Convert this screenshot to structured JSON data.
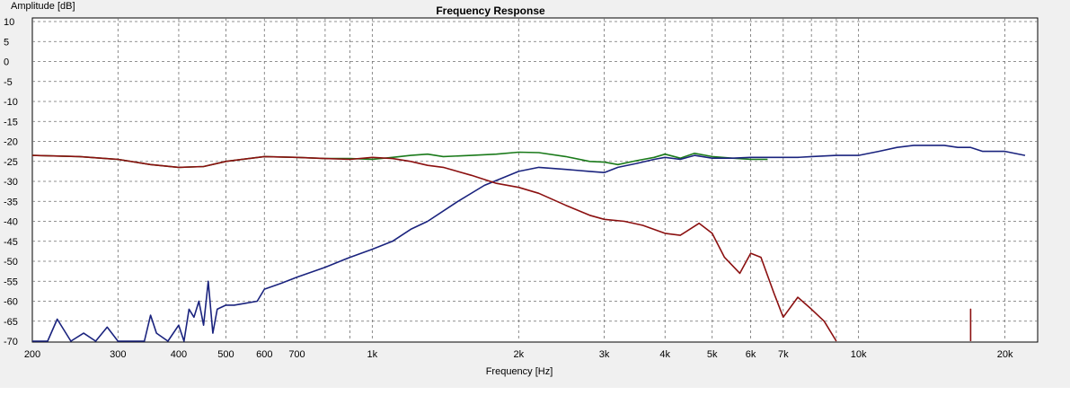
{
  "chart_data": {
    "type": "line",
    "title": "Frequency Response",
    "xlabel": "Frequency [Hz]",
    "ylabel": "Amplitude [dB]",
    "x_scale": "log",
    "xlim": [
      200,
      22000
    ],
    "ylim": [
      -70,
      10
    ],
    "grid": true,
    "y_ticks": [
      10,
      5,
      0,
      -5,
      -10,
      -15,
      -20,
      -25,
      -30,
      -35,
      -40,
      -45,
      -50,
      -55,
      -60,
      -65,
      -70
    ],
    "x_ticks": [
      {
        "value": 200,
        "label": "200"
      },
      {
        "value": 300,
        "label": "300"
      },
      {
        "value": 400,
        "label": "400"
      },
      {
        "value": 500,
        "label": "500"
      },
      {
        "value": 600,
        "label": "600"
      },
      {
        "value": 700,
        "label": "700"
      },
      {
        "value": 1000,
        "label": "1k"
      },
      {
        "value": 2000,
        "label": "2k"
      },
      {
        "value": 3000,
        "label": "3k"
      },
      {
        "value": 4000,
        "label": "4k"
      },
      {
        "value": 5000,
        "label": "5k"
      },
      {
        "value": 6000,
        "label": "6k"
      },
      {
        "value": 7000,
        "label": "7k"
      },
      {
        "value": 10000,
        "label": "10k"
      },
      {
        "value": 20000,
        "label": "20k"
      }
    ],
    "minor_x_gridlines": [
      800,
      900,
      8000,
      9000
    ],
    "colors": {
      "green": "#1a7a1a",
      "blue": "#1a237e",
      "red": "#8b1010",
      "grid": "#6e6e6e"
    },
    "series": [
      {
        "color": "#1a7a1a",
        "x": [
          200,
          250,
          300,
          350,
          400,
          450,
          500,
          600,
          700,
          800,
          900,
          1000,
          1100,
          1200,
          1300,
          1400,
          1600,
          1800,
          2000,
          2200,
          2500,
          2800,
          3000,
          3200,
          3500,
          3800,
          4000,
          4300,
          4600,
          5000,
          5500,
          6000,
          6500
        ],
        "y": [
          -23.5,
          -23.8,
          -24.5,
          -25.8,
          -26.5,
          -26.3,
          -25,
          -23.8,
          -24,
          -24.3,
          -24.3,
          -24.5,
          -24,
          -23.5,
          -23.2,
          -23.8,
          -23.5,
          -23.2,
          -22.7,
          -22.8,
          -23.8,
          -25,
          -25.2,
          -25.8,
          -24.8,
          -24,
          -23.2,
          -24.2,
          -23,
          -23.8,
          -24.2,
          -24.5,
          -24.5
        ]
      },
      {
        "color": "#1a237e",
        "x": [
          200,
          215,
          225,
          240,
          255,
          270,
          285,
          300,
          340,
          350,
          360,
          380,
          400,
          410,
          420,
          430,
          440,
          450,
          460,
          470,
          480,
          500,
          520,
          550,
          580,
          600,
          650,
          700,
          800,
          900,
          1000,
          1100,
          1200,
          1300,
          1500,
          1700,
          2000,
          2200,
          2500,
          2800,
          3000,
          3200,
          3500,
          3800,
          4000,
          4300,
          4600,
          5000,
          5500,
          6000,
          6500,
          7000,
          7500,
          8000,
          9000,
          10000,
          11000,
          12000,
          13000,
          14000,
          15000,
          16000,
          17000,
          18000,
          20000,
          22000
        ],
        "y": [
          -70,
          -70,
          -64.5,
          -70,
          -68,
          -70,
          -66.5,
          -70,
          -70,
          -63.5,
          -68,
          -70,
          -66,
          -70,
          -62,
          -64,
          -60,
          -66,
          -55,
          -68,
          -62,
          -61,
          -61,
          -60.5,
          -60,
          -57,
          -55.5,
          -54,
          -51.5,
          -49,
          -47,
          -45,
          -42,
          -40,
          -35,
          -31,
          -27.5,
          -26.5,
          -27,
          -27.5,
          -27.8,
          -26.5,
          -25.5,
          -24.5,
          -24,
          -24.5,
          -23.5,
          -24.2,
          -24.2,
          -24,
          -24,
          -24,
          -24,
          -23.8,
          -23.5,
          -23.5,
          -22.5,
          -21.5,
          -21,
          -21,
          -21,
          -21.5,
          -21.5,
          -22.5,
          -22.5,
          -23.5
        ]
      },
      {
        "color": "#8b1010",
        "x": [
          200,
          250,
          300,
          350,
          400,
          450,
          500,
          600,
          700,
          800,
          900,
          1000,
          1100,
          1200,
          1300,
          1400,
          1600,
          1800,
          2000,
          2200,
          2500,
          2800,
          3000,
          3300,
          3600,
          4000,
          4300,
          4700,
          5000,
          5300,
          5700,
          6000,
          6300,
          6700,
          7000,
          7500,
          8000,
          8500,
          9000
        ],
        "y": [
          -23.5,
          -23.8,
          -24.5,
          -25.8,
          -26.5,
          -26.3,
          -25,
          -23.8,
          -24,
          -24.3,
          -24.5,
          -24,
          -24.3,
          -25,
          -26,
          -26.5,
          -28.5,
          -30.5,
          -31.5,
          -33,
          -36,
          -38.5,
          -39.5,
          -40,
          -41,
          -43,
          -43.5,
          -40.5,
          -43,
          -49,
          -53,
          -48,
          -49,
          -58,
          -64,
          -59,
          -62,
          -65,
          -70
        ]
      },
      {
        "color": "#8b1010",
        "x": [
          17000,
          17000,
          17000
        ],
        "y": [
          -70,
          -62,
          -70
        ]
      }
    ]
  }
}
